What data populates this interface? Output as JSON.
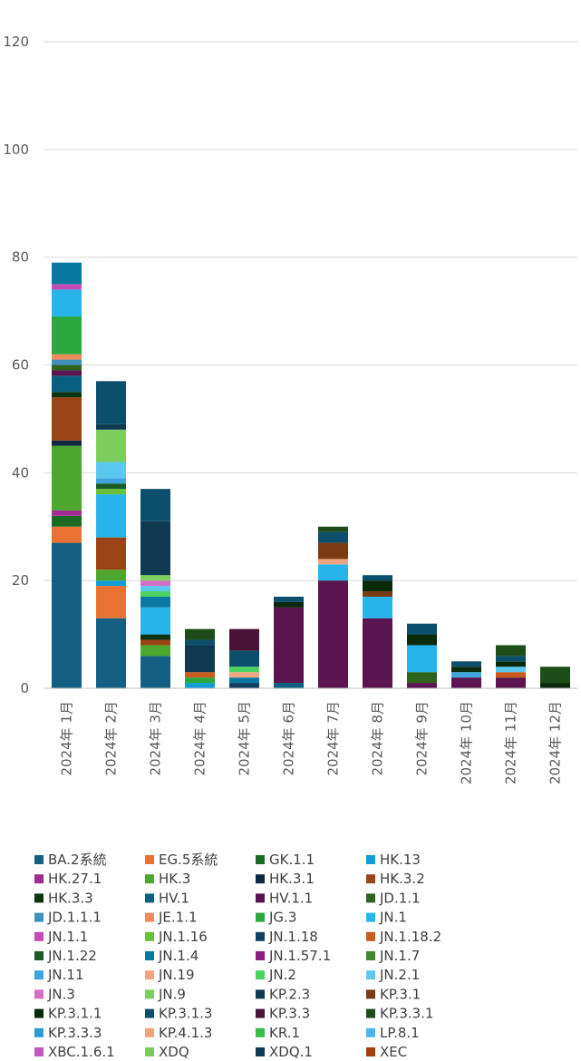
{
  "chart_data": {
    "type": "bar",
    "stacked": true,
    "title": "",
    "xlabel": "",
    "ylabel": "",
    "ylim": [
      0,
      120
    ],
    "yticks": [
      "0",
      "20",
      "40",
      "60",
      "80",
      "100",
      "120"
    ],
    "grid": "horizontal",
    "legend_position": "bottom",
    "categories": [
      "2024年 1月",
      "2024年 2月",
      "2024年 3月",
      "2024年 4月",
      "2024年 5月",
      "2024年 6月",
      "2024年 7月",
      "2024年 8月",
      "2024年 9月",
      "2024年 10月",
      "2024年 11月",
      "2024年 12月"
    ],
    "series": [
      {
        "name": "BA.2系統",
        "color": "#156082",
        "values": [
          27,
          13,
          6,
          0,
          0,
          0,
          0,
          0,
          0,
          0,
          0,
          0
        ]
      },
      {
        "name": "EG.5系統",
        "color": "#E97132",
        "values": [
          3,
          6,
          0,
          0,
          0,
          0,
          0,
          0,
          0,
          0,
          0,
          0
        ]
      },
      {
        "name": "GK.1.1",
        "color": "#196B24",
        "values": [
          2,
          0,
          0,
          0,
          0,
          0,
          0,
          0,
          0,
          0,
          0,
          0
        ]
      },
      {
        "name": "HK.13",
        "color": "#0F9ED5",
        "values": [
          0,
          1,
          0,
          1,
          0,
          0,
          0,
          0,
          0,
          0,
          0,
          0
        ]
      },
      {
        "name": "HK.27.1",
        "color": "#A02B93",
        "values": [
          1,
          0,
          0,
          0,
          0,
          0,
          0,
          0,
          0,
          0,
          0,
          0
        ]
      },
      {
        "name": "HK.3",
        "color": "#4EA72E",
        "values": [
          12,
          2,
          2,
          0,
          0,
          0,
          0,
          0,
          0,
          0,
          0,
          0
        ]
      },
      {
        "name": "HK.3.1",
        "color": "#0E2841",
        "values": [
          1,
          0,
          0,
          0,
          0,
          0,
          0,
          0,
          0,
          0,
          0,
          0
        ]
      },
      {
        "name": "HK.3.2",
        "color": "#9C4415",
        "values": [
          8,
          6,
          1,
          0,
          0,
          0,
          0,
          0,
          0,
          0,
          0,
          0
        ]
      },
      {
        "name": "HK.3.3",
        "color": "#0C3410",
        "values": [
          1,
          0,
          1,
          0,
          0,
          0,
          0,
          0,
          0,
          0,
          0,
          0
        ]
      },
      {
        "name": "HV.1",
        "color": "#095F80",
        "values": [
          3,
          0,
          0,
          0,
          0,
          1,
          0,
          0,
          0,
          0,
          0,
          0
        ]
      },
      {
        "name": "HV.1.1",
        "color": "#5A1550",
        "values": [
          1,
          0,
          0,
          0,
          0,
          14,
          20,
          13,
          1,
          2,
          2,
          0
        ]
      },
      {
        "name": "JD.1.1",
        "color": "#2E641B",
        "values": [
          1,
          0,
          0,
          0,
          0,
          0,
          0,
          0,
          2,
          0,
          0,
          0
        ]
      },
      {
        "name": "JD.1.1.1",
        "color": "#3F91BA",
        "values": [
          1,
          0,
          0,
          0,
          0,
          0,
          0,
          0,
          0,
          0,
          0,
          0
        ]
      },
      {
        "name": "JE.1.1",
        "color": "#EE8D5B",
        "values": [
          1,
          0,
          0,
          0,
          0,
          0,
          0,
          0,
          0,
          0,
          0,
          0
        ]
      },
      {
        "name": "JG.3",
        "color": "#2BA83F",
        "values": [
          7,
          0,
          0,
          1,
          0,
          0,
          0,
          0,
          0,
          0,
          0,
          0
        ]
      },
      {
        "name": "JN.1",
        "color": "#27B4EA",
        "values": [
          5,
          8,
          5,
          0,
          0,
          0,
          3,
          4,
          5,
          0,
          0,
          0
        ]
      },
      {
        "name": "JN.1.1",
        "color": "#C44AB8",
        "values": [
          1,
          0,
          0,
          0,
          0,
          0,
          0,
          0,
          0,
          0,
          0,
          0
        ]
      },
      {
        "name": "JN.1.16",
        "color": "#68C13A",
        "values": [
          0,
          1,
          0,
          0,
          0,
          0,
          0,
          0,
          0,
          0,
          0,
          0
        ]
      },
      {
        "name": "JN.1.18",
        "color": "#133E61",
        "values": [
          0,
          0,
          0,
          0,
          1,
          0,
          0,
          0,
          0,
          0,
          0,
          0
        ]
      },
      {
        "name": "JN.1.18.2",
        "color": "#C95B1C",
        "values": [
          0,
          0,
          0,
          1,
          0,
          0,
          0,
          0,
          0,
          0,
          1,
          0
        ]
      },
      {
        "name": "JN.1.22",
        "color": "#1A5C28",
        "values": [
          0,
          1,
          0,
          0,
          0,
          0,
          0,
          0,
          0,
          0,
          0,
          0
        ]
      },
      {
        "name": "JN.1.4",
        "color": "#0B7AA3",
        "values": [
          4,
          0,
          2,
          0,
          1,
          0,
          0,
          0,
          0,
          0,
          0,
          0
        ]
      },
      {
        "name": "JN.1.57.1",
        "color": "#8A1F80",
        "values": [
          0,
          0,
          0,
          0,
          0,
          0,
          0,
          0,
          0,
          0,
          0,
          0
        ]
      },
      {
        "name": "JN.1.7",
        "color": "#3F8A2C",
        "values": [
          0,
          0,
          0,
          0,
          0,
          0,
          0,
          0,
          0,
          0,
          0,
          0
        ]
      },
      {
        "name": "JN.11",
        "color": "#3DA4DE",
        "values": [
          0,
          1,
          0,
          0,
          0,
          0,
          0,
          0,
          0,
          1,
          0,
          0
        ]
      },
      {
        "name": "JN.19",
        "color": "#F0A582",
        "values": [
          0,
          0,
          0,
          0,
          1,
          0,
          1,
          0,
          0,
          0,
          0,
          0
        ]
      },
      {
        "name": "JN.2",
        "color": "#4CD260",
        "values": [
          0,
          0,
          1,
          0,
          1,
          0,
          0,
          0,
          0,
          0,
          0,
          0
        ]
      },
      {
        "name": "JN.2.1",
        "color": "#5BC8F0",
        "values": [
          0,
          3,
          1,
          0,
          0,
          0,
          0,
          0,
          0,
          0,
          1,
          0
        ]
      },
      {
        "name": "JN.3",
        "color": "#D46FC9",
        "values": [
          0,
          0,
          1,
          0,
          0,
          0,
          0,
          0,
          0,
          0,
          0,
          0
        ]
      },
      {
        "name": "JN.9",
        "color": "#7CCF5D",
        "values": [
          0,
          6,
          1,
          0,
          0,
          0,
          0,
          0,
          0,
          0,
          0,
          0
        ]
      },
      {
        "name": "KP.2.3",
        "color": "#0F3A52",
        "values": [
          0,
          1,
          10,
          5,
          0,
          0,
          0,
          0,
          0,
          0,
          0,
          0
        ]
      },
      {
        "name": "KP.3.1",
        "color": "#7A3A12",
        "values": [
          0,
          0,
          0,
          0,
          0,
          0,
          3,
          1,
          0,
          0,
          0,
          0
        ]
      },
      {
        "name": "KP.3.1.1",
        "color": "#0A2A0C",
        "values": [
          0,
          0,
          0,
          0,
          0,
          1,
          0,
          2,
          2,
          1,
          1,
          1
        ]
      },
      {
        "name": "KP.3.1.3",
        "color": "#0B4F6C",
        "values": [
          0,
          8,
          6,
          1,
          3,
          1,
          2,
          1,
          2,
          1,
          1,
          0
        ]
      },
      {
        "name": "KP.3.3",
        "color": "#4A1237",
        "values": [
          0,
          0,
          0,
          0,
          4,
          0,
          0,
          0,
          0,
          0,
          0,
          0
        ]
      },
      {
        "name": "KP.3.3.1",
        "color": "#1F4D19",
        "values": [
          0,
          0,
          0,
          2,
          0,
          0,
          1,
          0,
          0,
          0,
          2,
          3
        ]
      },
      {
        "name": "KP.3.3.3",
        "color": "#2C9BD4",
        "values": [
          0,
          0,
          0,
          0,
          0,
          0,
          0,
          0,
          0,
          0,
          0,
          0
        ]
      },
      {
        "name": "KP.4.1.3",
        "color": "#F1A27E",
        "values": [
          0,
          0,
          0,
          0,
          0,
          0,
          0,
          0,
          0,
          0,
          0,
          0
        ]
      },
      {
        "name": "KR.1",
        "color": "#37BB49",
        "values": [
          0,
          0,
          0,
          0,
          0,
          0,
          0,
          0,
          0,
          0,
          0,
          0
        ]
      },
      {
        "name": "LP.8.1",
        "color": "#49B6F0",
        "values": [
          0,
          0,
          0,
          0,
          0,
          0,
          0,
          0,
          0,
          0,
          0,
          0
        ]
      },
      {
        "name": "XBC.1.6.1",
        "color": "#C456C0",
        "values": [
          0,
          0,
          0,
          0,
          0,
          0,
          0,
          0,
          0,
          0,
          0,
          0
        ]
      },
      {
        "name": "XDQ",
        "color": "#7ACB58",
        "values": [
          0,
          0,
          0,
          0,
          0,
          0,
          0,
          0,
          0,
          0,
          0,
          0
        ]
      },
      {
        "name": "XDQ.1",
        "color": "#0D3B54",
        "values": [
          0,
          0,
          0,
          0,
          0,
          0,
          0,
          0,
          0,
          0,
          0,
          0
        ]
      },
      {
        "name": "XEC",
        "color": "#A3400F",
        "values": [
          0,
          0,
          0,
          0,
          0,
          0,
          0,
          0,
          0,
          0,
          0,
          0
        ]
      }
    ]
  }
}
